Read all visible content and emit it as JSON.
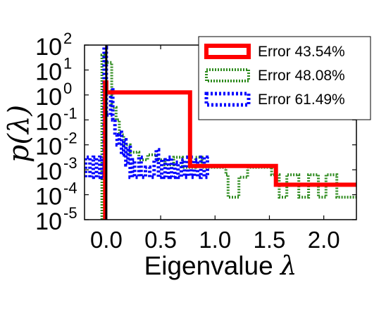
{
  "chart_data": {
    "type": "line",
    "title": "",
    "xlabel": {
      "text": "Eigenvalue",
      "symbol": "λ"
    },
    "ylabel": {
      "text": "p(λ)"
    },
    "xlim": [
      -0.2,
      2.3
    ],
    "ylim": [
      -5,
      2
    ],
    "y_scale": "log",
    "x_ticks": [
      {
        "value": 0.0,
        "label": "0.0"
      },
      {
        "value": 0.5,
        "label": "0.5"
      },
      {
        "value": 1.0,
        "label": "1.0"
      },
      {
        "value": 1.5,
        "label": "1.5"
      },
      {
        "value": 2.0,
        "label": "2.0"
      }
    ],
    "y_ticks": [
      {
        "value": 2,
        "base": "10",
        "exp": "2"
      },
      {
        "value": 1,
        "base": "10",
        "exp": "1"
      },
      {
        "value": 0,
        "base": "10",
        "exp": "0"
      },
      {
        "value": -1,
        "base": "10",
        "exp": "-1"
      },
      {
        "value": -2,
        "base": "10",
        "exp": "-2"
      },
      {
        "value": -3,
        "base": "10",
        "exp": "-3"
      },
      {
        "value": -4,
        "base": "10",
        "exp": "-4"
      },
      {
        "value": -5,
        "base": "10",
        "exp": "-5"
      }
    ],
    "grid": false,
    "legend_position": "top-right",
    "vertical_line_x": 0.0,
    "series": [
      {
        "name": "Error 43.54%",
        "color": "#ff0000",
        "style": "solid",
        "points": [
          [
            -0.01,
            -5
          ],
          [
            -0.01,
            0.5
          ],
          [
            0.0,
            0.5
          ],
          [
            0.0,
            0.1
          ],
          [
            0.77,
            0.1
          ],
          [
            0.77,
            -2.85
          ],
          [
            1.56,
            -2.85
          ],
          [
            1.56,
            -3.6
          ],
          [
            2.3,
            -3.6
          ]
        ]
      },
      {
        "name": "Error 48.08%",
        "color": "#2e8b1e",
        "style": "dotted",
        "points": [
          [
            -0.04,
            -5
          ],
          [
            -0.04,
            1.6
          ],
          [
            -0.02,
            1.6
          ],
          [
            -0.02,
            1.3
          ],
          [
            0.05,
            1.3
          ],
          [
            0.05,
            -0.5
          ],
          [
            0.09,
            -0.5
          ],
          [
            0.09,
            -1.0
          ],
          [
            0.12,
            -1.0
          ],
          [
            0.12,
            -1.6
          ],
          [
            0.16,
            -1.6
          ],
          [
            0.16,
            -2.0
          ],
          [
            0.22,
            -2.0
          ],
          [
            0.22,
            -2.3
          ],
          [
            0.3,
            -2.3
          ],
          [
            0.3,
            -2.6
          ],
          [
            0.38,
            -2.6
          ],
          [
            0.38,
            -2.4
          ],
          [
            0.46,
            -2.4
          ],
          [
            0.46,
            -2.6
          ],
          [
            0.54,
            -2.6
          ],
          [
            0.54,
            -2.8
          ],
          [
            0.62,
            -2.8
          ],
          [
            0.62,
            -2.5
          ],
          [
            0.7,
            -2.5
          ],
          [
            0.7,
            -2.9
          ],
          [
            0.82,
            -2.9
          ],
          [
            0.82,
            -2.5
          ],
          [
            0.88,
            -2.5
          ],
          [
            0.88,
            -2.9
          ],
          [
            1.1,
            -2.9
          ],
          [
            1.1,
            -3.2
          ],
          [
            1.12,
            -3.2
          ],
          [
            1.12,
            -4.1
          ],
          [
            1.22,
            -4.1
          ],
          [
            1.22,
            -3.3
          ],
          [
            1.3,
            -3.3
          ],
          [
            1.3,
            -2.9
          ],
          [
            1.52,
            -2.9
          ],
          [
            1.52,
            -3.2
          ],
          [
            1.59,
            -3.2
          ],
          [
            1.59,
            -4.1
          ],
          [
            1.66,
            -4.1
          ],
          [
            1.66,
            -3.2
          ],
          [
            1.77,
            -3.2
          ],
          [
            1.77,
            -4.1
          ],
          [
            1.86,
            -4.1
          ],
          [
            1.86,
            -3.2
          ],
          [
            1.95,
            -3.2
          ],
          [
            1.95,
            -4.1
          ],
          [
            2.02,
            -4.1
          ],
          [
            2.02,
            -3.2
          ],
          [
            2.12,
            -3.2
          ],
          [
            2.12,
            -4.1
          ],
          [
            2.3,
            -4.1
          ]
        ]
      },
      {
        "name": "Error 61.49%",
        "color": "#0000ff",
        "style": "dotted",
        "points": [
          [
            -0.19,
            -3.3
          ],
          [
            -0.19,
            -2.5
          ],
          [
            -0.15,
            -2.5
          ],
          [
            -0.15,
            -3.3
          ],
          [
            -0.12,
            -3.3
          ],
          [
            -0.12,
            -2.5
          ],
          [
            -0.09,
            -2.5
          ],
          [
            -0.09,
            -3.3
          ],
          [
            -0.06,
            -3.3
          ],
          [
            -0.06,
            -2.5
          ],
          [
            -0.04,
            -2.5
          ],
          [
            -0.04,
            -3.3
          ],
          [
            -0.02,
            -3.3
          ],
          [
            -0.02,
            1.9
          ],
          [
            0.0,
            1.9
          ],
          [
            0.0,
            -0.8
          ],
          [
            0.04,
            -0.8
          ],
          [
            0.04,
            0.2
          ],
          [
            0.06,
            0.2
          ],
          [
            0.06,
            -1.0
          ],
          [
            0.08,
            -1.0
          ],
          [
            0.08,
            -1.6
          ],
          [
            0.1,
            -1.6
          ],
          [
            0.1,
            -2.0
          ],
          [
            0.12,
            -2.0
          ],
          [
            0.12,
            -1.5
          ],
          [
            0.14,
            -1.5
          ],
          [
            0.14,
            -2.4
          ],
          [
            0.16,
            -2.4
          ],
          [
            0.16,
            -1.8
          ],
          [
            0.18,
            -1.8
          ],
          [
            0.18,
            -2.8
          ],
          [
            0.2,
            -2.8
          ],
          [
            0.2,
            -2.1
          ],
          [
            0.22,
            -2.1
          ],
          [
            0.22,
            -3.3
          ],
          [
            0.24,
            -3.3
          ],
          [
            0.24,
            -2.6
          ],
          [
            0.26,
            -2.6
          ],
          [
            0.26,
            -3.3
          ],
          [
            0.3,
            -3.3
          ],
          [
            0.3,
            -2.5
          ],
          [
            0.32,
            -2.5
          ],
          [
            0.32,
            -3.3
          ],
          [
            0.36,
            -3.3
          ],
          [
            0.36,
            -2.9
          ],
          [
            0.4,
            -2.9
          ],
          [
            0.4,
            -3.3
          ],
          [
            0.44,
            -3.3
          ],
          [
            0.44,
            -2.6
          ],
          [
            0.46,
            -2.6
          ],
          [
            0.46,
            -2.2
          ],
          [
            0.48,
            -2.2
          ],
          [
            0.48,
            -3.3
          ],
          [
            0.51,
            -3.3
          ],
          [
            0.51,
            -2.6
          ],
          [
            0.54,
            -2.6
          ],
          [
            0.54,
            -3.3
          ],
          [
            0.57,
            -3.3
          ],
          [
            0.57,
            -2.5
          ],
          [
            0.6,
            -2.5
          ],
          [
            0.6,
            -3.3
          ],
          [
            0.63,
            -3.3
          ],
          [
            0.63,
            -2.7
          ],
          [
            0.66,
            -2.7
          ],
          [
            0.66,
            -3.3
          ],
          [
            0.69,
            -3.3
          ],
          [
            0.69,
            -2.6
          ],
          [
            0.72,
            -2.6
          ],
          [
            0.72,
            -3.3
          ],
          [
            0.75,
            -3.3
          ],
          [
            0.75,
            -2.5
          ],
          [
            0.78,
            -2.5
          ],
          [
            0.78,
            -3.3
          ],
          [
            0.81,
            -3.3
          ],
          [
            0.81,
            -2.6
          ],
          [
            0.84,
            -2.6
          ],
          [
            0.84,
            -3.3
          ],
          [
            0.87,
            -3.3
          ],
          [
            0.87,
            -2.5
          ],
          [
            0.9,
            -2.5
          ],
          [
            0.9,
            -3.3
          ],
          [
            0.93,
            -3.3
          ],
          [
            0.93,
            -2.5
          ],
          [
            0.96,
            -2.5
          ]
        ]
      }
    ]
  }
}
